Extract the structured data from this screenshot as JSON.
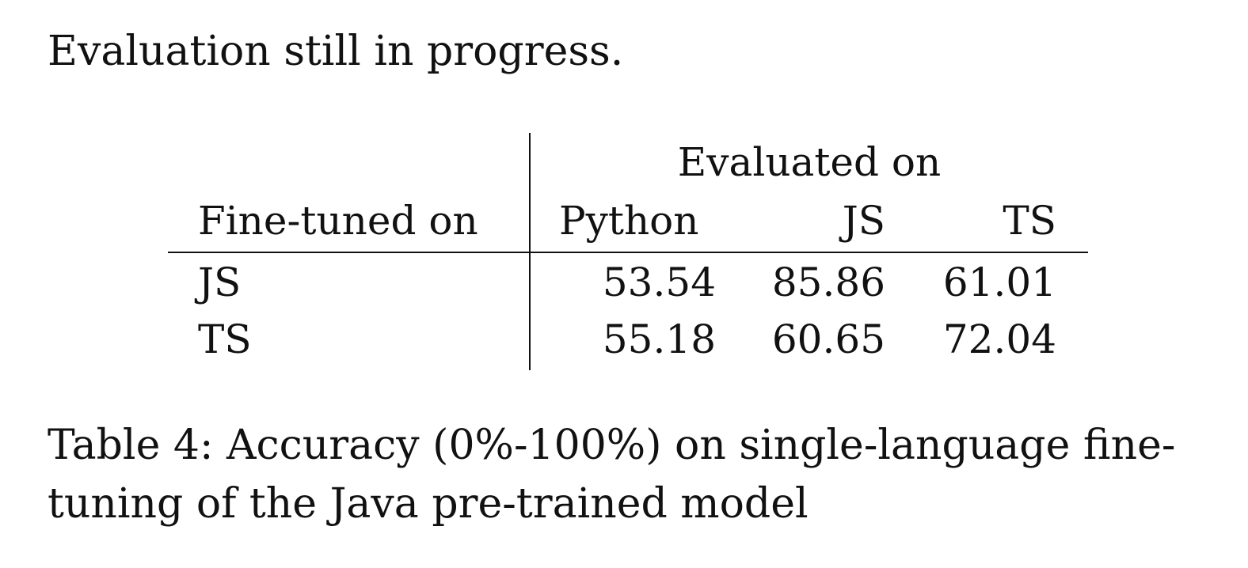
{
  "intro_text": "Evaluation still in progress.",
  "table": {
    "group_header": "Evaluated on",
    "row_header": "Fine-tuned on",
    "columns": [
      "Python",
      "JS",
      "TS"
    ],
    "rows": [
      {
        "label": "JS",
        "values": [
          "53.54",
          "85.86",
          "61.01"
        ]
      },
      {
        "label": "TS",
        "values": [
          "55.18",
          "60.65",
          "72.04"
        ]
      }
    ]
  },
  "caption": {
    "line1": "Table 4: Accuracy (0%-100%) on single-language fine-",
    "line2": "tuning of the Java pre-trained model"
  }
}
